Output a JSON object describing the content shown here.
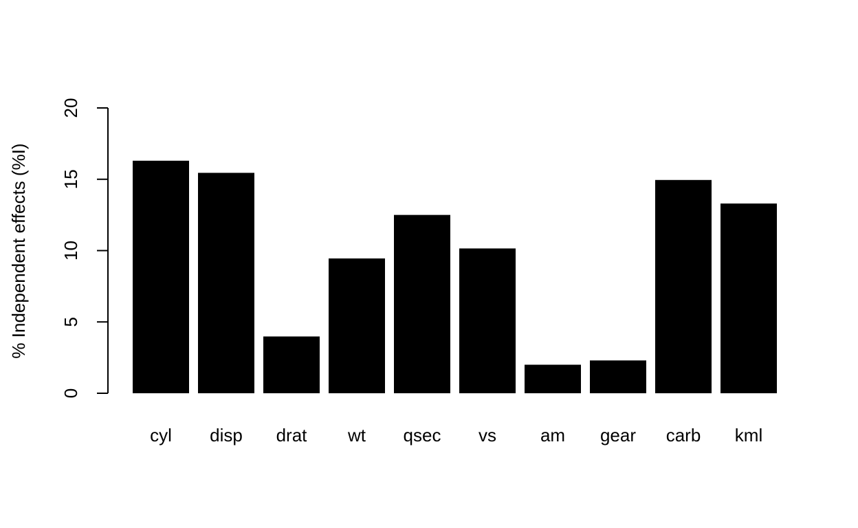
{
  "chart_data": {
    "type": "bar",
    "title": "",
    "xlabel": "",
    "ylabel": "% Independent effects (%I)",
    "categories": [
      "cyl",
      "disp",
      "drat",
      "wt",
      "qsec",
      "vs",
      "am",
      "gear",
      "carb",
      "kml"
    ],
    "values": [
      16.3,
      15.45,
      3.98,
      9.45,
      12.5,
      10.15,
      2.0,
      2.3,
      14.95,
      13.3
    ],
    "ylim": [
      0,
      20
    ],
    "yticks": [
      "0",
      "5",
      "10",
      "15",
      "20"
    ],
    "grid": false,
    "legend": "none",
    "bar_color": "#000000"
  }
}
